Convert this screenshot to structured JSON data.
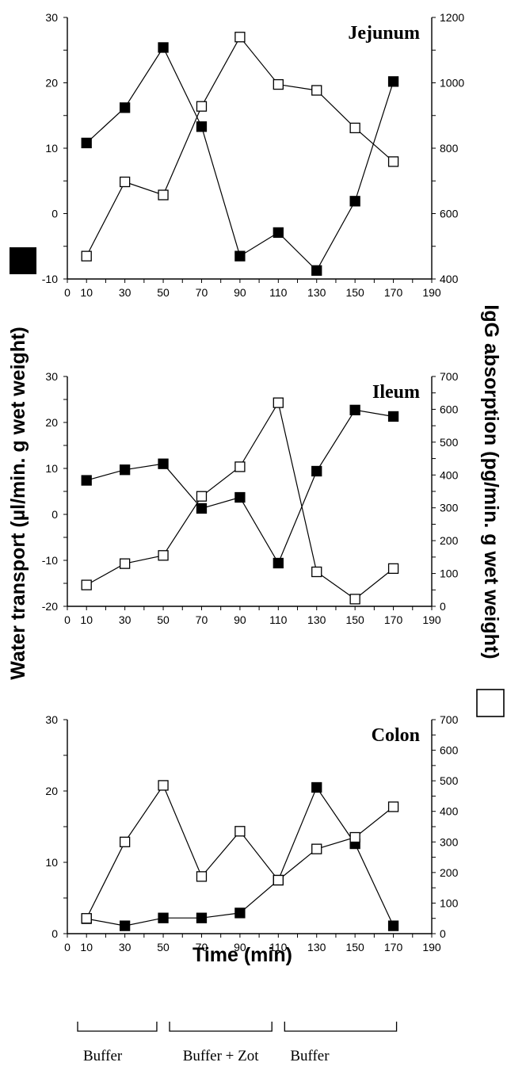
{
  "chart_data": [
    {
      "type": "line",
      "title": "Jejunum",
      "x": [
        10,
        30,
        50,
        70,
        90,
        110,
        130,
        150,
        170
      ],
      "xlim": [
        0,
        190
      ],
      "xticks": [
        "0",
        "10",
        "30",
        "50",
        "70",
        "90",
        "110",
        "130",
        "150",
        "170",
        "190"
      ],
      "ylim_left": [
        -10,
        30
      ],
      "yticks_left": [
        "-10",
        "0",
        "10",
        "20",
        "30"
      ],
      "ylim_right": [
        400,
        1200
      ],
      "yticks_right": [
        "400",
        "600",
        "800",
        "1000",
        "1200"
      ],
      "series": [
        {
          "marker": "filled-square",
          "axis": "left",
          "values": [
            10.8,
            16.2,
            25.4,
            13.3,
            -6.5,
            -2.9,
            -8.7,
            1.9,
            20.2
          ]
        },
        {
          "marker": "open-square",
          "axis": "right",
          "values": [
            470,
            697,
            657,
            928,
            1140,
            995,
            977,
            862,
            759
          ]
        }
      ]
    },
    {
      "type": "line",
      "title": "Ileum",
      "x": [
        10,
        30,
        50,
        70,
        90,
        110,
        130,
        150,
        170
      ],
      "xlim": [
        0,
        190
      ],
      "xticks": [
        "0",
        "10",
        "30",
        "50",
        "70",
        "90",
        "110",
        "130",
        "150",
        "170",
        "190"
      ],
      "ylim_left": [
        -20,
        30
      ],
      "yticks_left": [
        "-20",
        "-10",
        "0",
        "10",
        "20",
        "30"
      ],
      "ylim_right": [
        0,
        700
      ],
      "yticks_right": [
        "0",
        "100",
        "200",
        "300",
        "400",
        "500",
        "600",
        "700"
      ],
      "series": [
        {
          "marker": "filled-square",
          "axis": "left",
          "values": [
            7.4,
            9.7,
            11.0,
            1.3,
            3.7,
            -10.6,
            9.4,
            22.7,
            21.3
          ]
        },
        {
          "marker": "open-square",
          "axis": "right",
          "values": [
            65,
            130,
            155,
            335,
            425,
            620,
            105,
            22,
            115
          ]
        }
      ]
    },
    {
      "type": "line",
      "title": "Colon",
      "x": [
        10,
        30,
        50,
        70,
        90,
        110,
        130,
        150,
        170
      ],
      "xlim": [
        0,
        190
      ],
      "xticks": [
        "0",
        "10",
        "30",
        "50",
        "70",
        "90",
        "110",
        "130",
        "150",
        "170",
        "190"
      ],
      "ylim_left": [
        0,
        30
      ],
      "yticks_left": [
        "0",
        "10",
        "20",
        "30"
      ],
      "ylim_right": [
        0,
        700
      ],
      "yticks_right": [
        "0",
        "100",
        "200",
        "300",
        "400",
        "500",
        "600",
        "700"
      ],
      "series": [
        {
          "marker": "filled-square",
          "axis": "left",
          "values": [
            2.1,
            1.1,
            2.2,
            2.2,
            2.9,
            7.5,
            20.5,
            12.6,
            1.1
          ]
        },
        {
          "marker": "open-square",
          "axis": "right",
          "values": [
            50,
            300,
            485,
            187,
            335,
            175,
            277,
            315,
            415
          ]
        }
      ]
    }
  ],
  "labels": {
    "xlabel": "Time (min)",
    "ylabel_left": "Water transport (µl/min. g wet weight)",
    "ylabel_right": "IgG absorption (pg/min. g wet weight)"
  },
  "phases": [
    {
      "label": "Buffer",
      "from": 0,
      "to": 45
    },
    {
      "label": "Buffer + Zot",
      "from": 50,
      "to": 105
    },
    {
      "label": "Buffer",
      "from": 110,
      "to": 170
    }
  ]
}
